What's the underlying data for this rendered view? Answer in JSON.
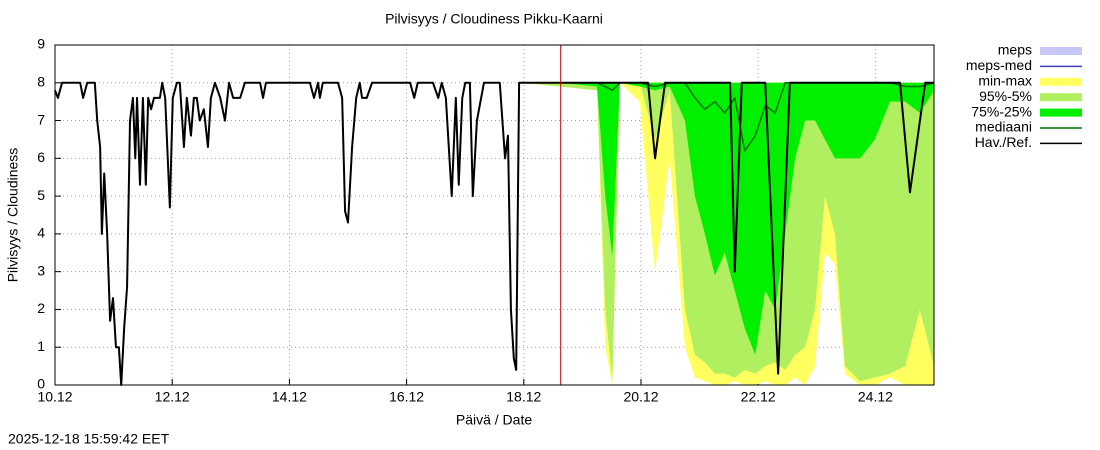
{
  "chart_data": {
    "type": "line",
    "title": "Pilvisyys / Cloudiness Pikku-Kaarni",
    "xlabel": "Päivä / Date",
    "ylabel": "Pilvisyys / Cloudiness",
    "xlim": [
      10,
      25
    ],
    "ylim": [
      0,
      9
    ],
    "xticks": [
      {
        "value": 10,
        "label": "10.12"
      },
      {
        "value": 12,
        "label": "12.12"
      },
      {
        "value": 14,
        "label": "14.12"
      },
      {
        "value": 16,
        "label": "16.12"
      },
      {
        "value": 18,
        "label": "18.12"
      },
      {
        "value": 20,
        "label": "20.12"
      },
      {
        "value": 22,
        "label": "22.12"
      },
      {
        "value": 24,
        "label": "24.12"
      }
    ],
    "yticks": [
      0,
      1,
      2,
      3,
      4,
      5,
      6,
      7,
      8,
      9
    ],
    "grid": true,
    "now_x": 18.63,
    "now_color": "#c00000",
    "legend": "right",
    "series": [
      {
        "name": "meps",
        "kind": "band",
        "color": "#c8c8f8"
      },
      {
        "name": "meps-med",
        "kind": "line",
        "color": "#4040c0"
      },
      {
        "name": "min-max",
        "kind": "band",
        "color": "#ffff60",
        "x": [
          17.94,
          18.62,
          19.25,
          19.39,
          19.51,
          19.64,
          19.98,
          20.24,
          20.49,
          20.75,
          20.92,
          21.09,
          21.26,
          21.43,
          21.6,
          21.77,
          21.95,
          22.12,
          22.29,
          22.46,
          22.63,
          22.8,
          22.97,
          23.14,
          23.31,
          23.48,
          23.74,
          23.99,
          24.25,
          24.51,
          24.76,
          25.0
        ],
        "lower": [
          8,
          7.9,
          7.8,
          1,
          0,
          8,
          7.5,
          3,
          6,
          1,
          0.2,
          0.1,
          0,
          0,
          0.1,
          0,
          0,
          0.1,
          0,
          0,
          0.2,
          0,
          0.5,
          3.5,
          3.2,
          0.3,
          0,
          0,
          0.2,
          0,
          0,
          0
        ],
        "upper": [
          8,
          8,
          8,
          8,
          8,
          8,
          8,
          8,
          8,
          8,
          8,
          8,
          8,
          8,
          8,
          8,
          8,
          8,
          8,
          8,
          8,
          8,
          8,
          8,
          8,
          8,
          8,
          8,
          8,
          8,
          8,
          8
        ]
      },
      {
        "name": "95%-5%",
        "kind": "band",
        "color": "#b0f060",
        "x": [
          17.94,
          18.62,
          19.25,
          19.39,
          19.51,
          19.64,
          19.98,
          20.24,
          20.49,
          20.75,
          20.92,
          21.09,
          21.26,
          21.43,
          21.6,
          21.77,
          21.95,
          22.12,
          22.29,
          22.46,
          22.63,
          22.8,
          22.97,
          23.14,
          23.31,
          23.48,
          23.74,
          23.99,
          24.25,
          24.51,
          24.76,
          25.0
        ],
        "lower": [
          8,
          7.9,
          7.8,
          2,
          0.1,
          8,
          8,
          6.5,
          7.8,
          2,
          0.8,
          0.6,
          0.3,
          0.3,
          0.2,
          0.4,
          0.3,
          0.5,
          0.6,
          0.4,
          0.8,
          1,
          2,
          5,
          4,
          0.5,
          0.1,
          0.2,
          0.3,
          0.5,
          2,
          0.5
        ],
        "upper": [
          8,
          8,
          8,
          8,
          8,
          8,
          8,
          8,
          8,
          8,
          8,
          8,
          8,
          8,
          8,
          8,
          8,
          8,
          8,
          8,
          8,
          8,
          8,
          8,
          8,
          8,
          8,
          8,
          8,
          8,
          8,
          8
        ]
      },
      {
        "name": "75%-25%",
        "kind": "band",
        "color": "#00f000",
        "x": [
          17.94,
          18.62,
          19.25,
          19.39,
          19.51,
          19.64,
          19.98,
          20.24,
          20.49,
          20.75,
          20.92,
          21.09,
          21.26,
          21.43,
          21.6,
          21.77,
          21.95,
          22.12,
          22.29,
          22.46,
          22.63,
          22.8,
          22.97,
          23.14,
          23.31,
          23.48,
          23.74,
          23.99,
          24.25,
          24.51,
          24.76,
          25.0
        ],
        "lower": [
          8,
          8,
          7.9,
          5,
          3.4,
          8,
          7.9,
          7.8,
          7.9,
          7,
          5,
          4,
          2.9,
          3.5,
          2.5,
          1.5,
          0.8,
          2.5,
          2,
          4,
          6,
          7,
          7,
          6.5,
          6,
          6,
          6,
          6.5,
          7.5,
          7.5,
          7.2,
          7.8
        ],
        "upper": [
          8,
          8,
          8,
          8,
          8,
          8,
          8,
          8,
          8,
          8,
          8,
          8,
          8,
          8,
          8,
          8,
          8,
          8,
          8,
          8,
          8,
          8,
          8,
          8,
          8,
          8,
          8,
          8,
          8,
          8,
          8,
          8
        ]
      },
      {
        "name": "mediaani",
        "kind": "line",
        "color": "#007000",
        "x": [
          17.94,
          18.62,
          19.25,
          19.39,
          19.51,
          19.64,
          19.98,
          20.24,
          20.49,
          20.75,
          20.92,
          21.09,
          21.26,
          21.43,
          21.6,
          21.77,
          21.95,
          22.12,
          22.29,
          22.46,
          22.63,
          22.8,
          22.97,
          23.14,
          23.31,
          23.48,
          23.74,
          23.99,
          24.25,
          24.51,
          24.76,
          25.0
        ],
        "values": [
          8,
          8,
          8,
          7.9,
          7.8,
          8,
          8,
          7.9,
          8,
          8,
          7.6,
          7.3,
          7.5,
          7.2,
          7.6,
          6.2,
          6.6,
          7.4,
          7.2,
          8,
          8,
          8,
          8,
          8,
          8,
          8,
          8,
          8,
          8,
          7.9,
          7.9,
          8
        ]
      },
      {
        "name": "Hav./Ref.",
        "kind": "line",
        "color": "#000000",
        "x": [
          10.0,
          10.05,
          10.12,
          10.43,
          10.48,
          10.55,
          10.68,
          10.72,
          10.77,
          10.8,
          10.84,
          10.89,
          10.94,
          10.99,
          11.04,
          11.09,
          11.13,
          11.18,
          11.23,
          11.28,
          11.33,
          11.37,
          11.4,
          11.45,
          11.5,
          11.55,
          11.59,
          11.64,
          11.69,
          11.79,
          11.83,
          11.88,
          11.96,
          12.01,
          12.08,
          12.13,
          12.2,
          12.25,
          12.32,
          12.37,
          12.42,
          12.47,
          12.54,
          12.61,
          12.66,
          12.73,
          12.82,
          12.9,
          12.97,
          13.04,
          13.16,
          13.24,
          13.5,
          13.55,
          13.6,
          14.35,
          14.42,
          14.49,
          14.52,
          14.57,
          14.83,
          14.9,
          14.95,
          15.0,
          15.07,
          15.14,
          15.2,
          15.24,
          15.32,
          15.41,
          16.06,
          16.13,
          16.19,
          16.45,
          16.54,
          16.6,
          16.67,
          16.77,
          16.84,
          16.89,
          16.95,
          17.0,
          17.08,
          17.13,
          17.2,
          17.32,
          17.59,
          17.68,
          17.73,
          17.78,
          17.83,
          17.87,
          17.92,
          19.98,
          20.12,
          20.24,
          20.41,
          21.52,
          21.6,
          21.72,
          22.12,
          22.34,
          22.54,
          24.42,
          24.59,
          24.85,
          25.0
        ],
        "values": [
          7.8,
          7.6,
          8,
          8,
          7.6,
          8,
          8,
          7,
          6.3,
          4,
          5.6,
          4,
          1.7,
          2.3,
          1,
          1,
          0,
          1.5,
          2.6,
          7,
          7.6,
          6,
          7.6,
          5.3,
          7.6,
          5.3,
          7.6,
          7.3,
          7.6,
          7.6,
          8,
          7.6,
          4.7,
          7.6,
          8,
          8,
          6.3,
          7.6,
          6.6,
          7.6,
          7.6,
          7,
          7.3,
          6.3,
          7.6,
          8,
          7.6,
          7,
          8,
          7.6,
          7.6,
          8,
          8,
          7.6,
          8,
          8,
          7.6,
          8,
          7.6,
          8,
          8,
          7.6,
          4.6,
          4.3,
          6.3,
          7.6,
          8,
          7.6,
          7.6,
          8,
          8,
          7.6,
          8,
          8,
          7.6,
          8,
          7.6,
          5,
          7.6,
          5.3,
          7.6,
          8,
          8,
          5,
          7,
          8,
          8,
          6,
          6.6,
          2,
          0.7,
          0.4,
          8,
          8,
          8,
          6,
          8,
          8,
          3,
          8,
          8,
          0.3,
          8,
          8,
          5.1,
          8,
          8
        ]
      }
    ]
  },
  "footer": "2025-12-18 15:59:42 EET"
}
